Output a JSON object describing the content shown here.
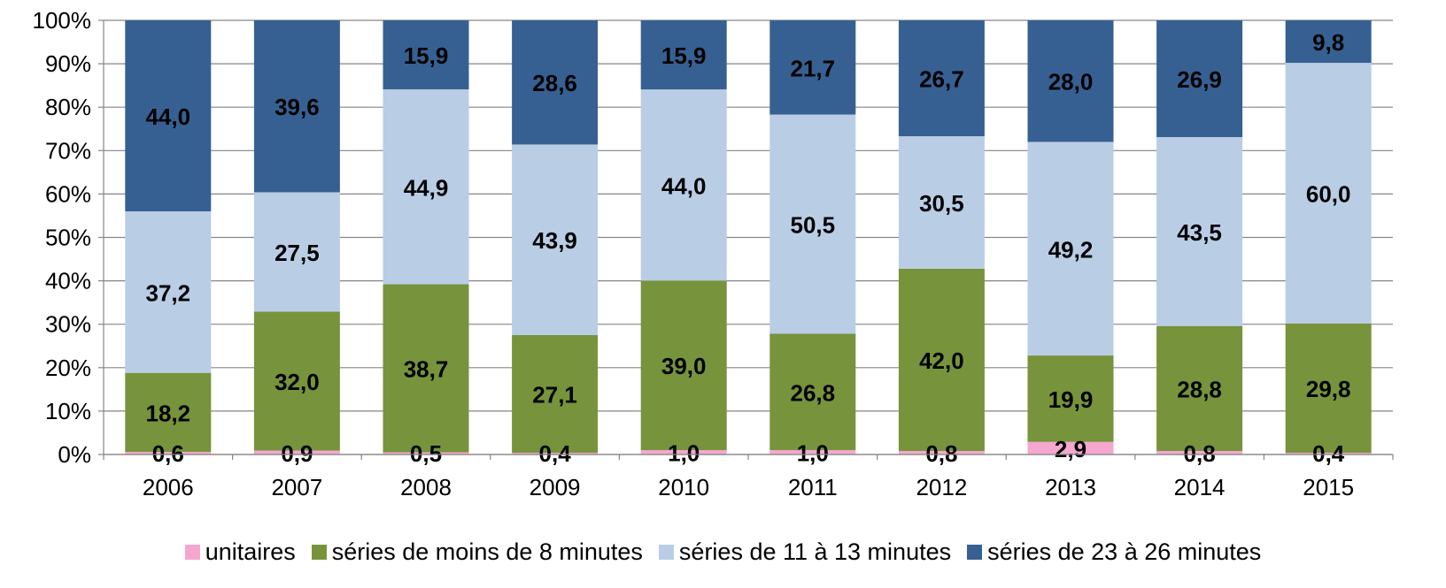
{
  "chart_data": {
    "type": "bar",
    "stacked": true,
    "normalized": true,
    "categories": [
      "2006",
      "2007",
      "2008",
      "2009",
      "2010",
      "2011",
      "2012",
      "2013",
      "2014",
      "2015"
    ],
    "ylim": [
      0,
      100
    ],
    "yticks": [
      "0%",
      "10%",
      "20%",
      "30%",
      "40%",
      "50%",
      "60%",
      "70%",
      "80%",
      "90%",
      "100%"
    ],
    "grid": true,
    "legend_position": "bottom",
    "series": [
      {
        "name": "unitaires",
        "color": "#f5a7cf",
        "values": [
          0.6,
          0.9,
          0.5,
          0.4,
          1.0,
          1.0,
          0.8,
          2.9,
          0.8,
          0.4
        ],
        "labels": [
          "0,6",
          "0,9",
          "0,5",
          "0,4",
          "1,0",
          "1,0",
          "0,8",
          "2,9",
          "0,8",
          "0,4"
        ]
      },
      {
        "name": "séries de moins de 8 minutes",
        "color": "#77933c",
        "values": [
          18.2,
          32.0,
          38.7,
          27.1,
          39.0,
          26.8,
          42.0,
          19.9,
          28.8,
          29.8
        ],
        "labels": [
          "18,2",
          "32,0",
          "38,7",
          "27,1",
          "39,0",
          "26,8",
          "42,0",
          "19,9",
          "28,8",
          "29,8"
        ]
      },
      {
        "name": "séries de 11 à 13 minutes",
        "color": "#b9cde5",
        "values": [
          37.2,
          27.5,
          44.9,
          43.9,
          44.0,
          50.5,
          30.5,
          49.2,
          43.5,
          60.0
        ],
        "labels": [
          "37,2",
          "27,5",
          "44,9",
          "43,9",
          "44,0",
          "50,5",
          "30,5",
          "49,2",
          "43,5",
          "60,0"
        ]
      },
      {
        "name": "séries de 23 à 26 minutes",
        "color": "#376092",
        "values": [
          44.0,
          39.6,
          15.9,
          28.6,
          15.9,
          21.7,
          26.7,
          28.0,
          26.9,
          9.8
        ],
        "labels": [
          "44,0",
          "39,6",
          "15,9",
          "28,6",
          "15,9",
          "21,7",
          "26,7",
          "28,0",
          "26,9",
          "9,8"
        ]
      }
    ]
  }
}
